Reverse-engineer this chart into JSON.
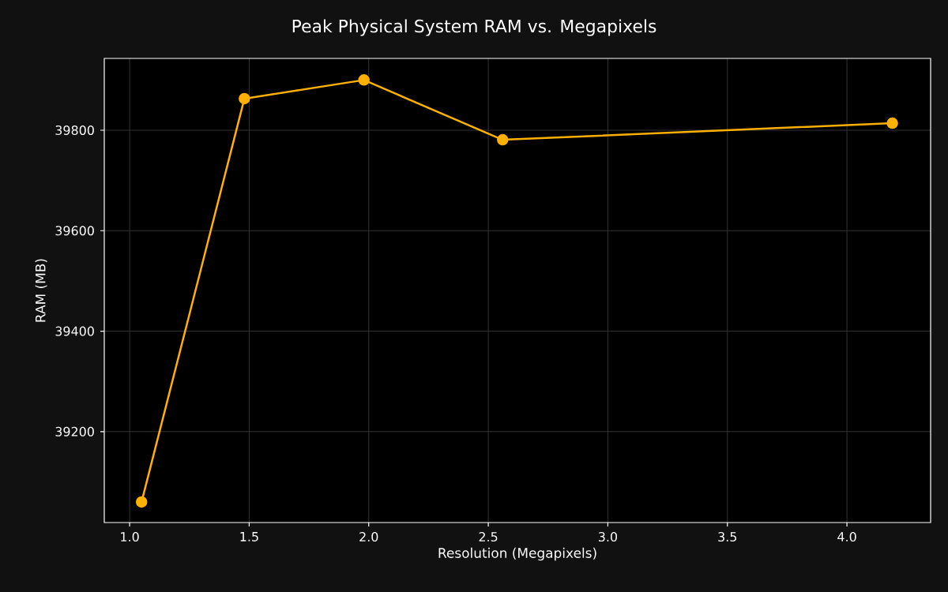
{
  "chart_data": {
    "type": "line",
    "title": "Peak Physical System RAM vs. Megapixels",
    "xlabel": "Resolution (Megapixels)",
    "ylabel": "RAM (MB)",
    "x": [
      1.05,
      1.48,
      1.98,
      2.56,
      4.19
    ],
    "series": [
      {
        "color": "#ffb000",
        "values": [
          39060,
          39863,
          39900,
          39781,
          39814
        ]
      }
    ],
    "xlim": [
      0.894,
      4.35
    ],
    "ylim": [
      39019,
      39943
    ],
    "xticks": [
      {
        "value": 1.0,
        "label": "1.0"
      },
      {
        "value": 1.5,
        "label": "1.5"
      },
      {
        "value": 2.0,
        "label": "2.0"
      },
      {
        "value": 2.5,
        "label": "2.5"
      },
      {
        "value": 3.0,
        "label": "3.0"
      },
      {
        "value": 3.5,
        "label": "3.5"
      },
      {
        "value": 4.0,
        "label": "4.0"
      }
    ],
    "yticks": [
      39200,
      39400,
      39600,
      39800
    ],
    "grid": true,
    "marker": "circle",
    "line_style": "solid"
  }
}
